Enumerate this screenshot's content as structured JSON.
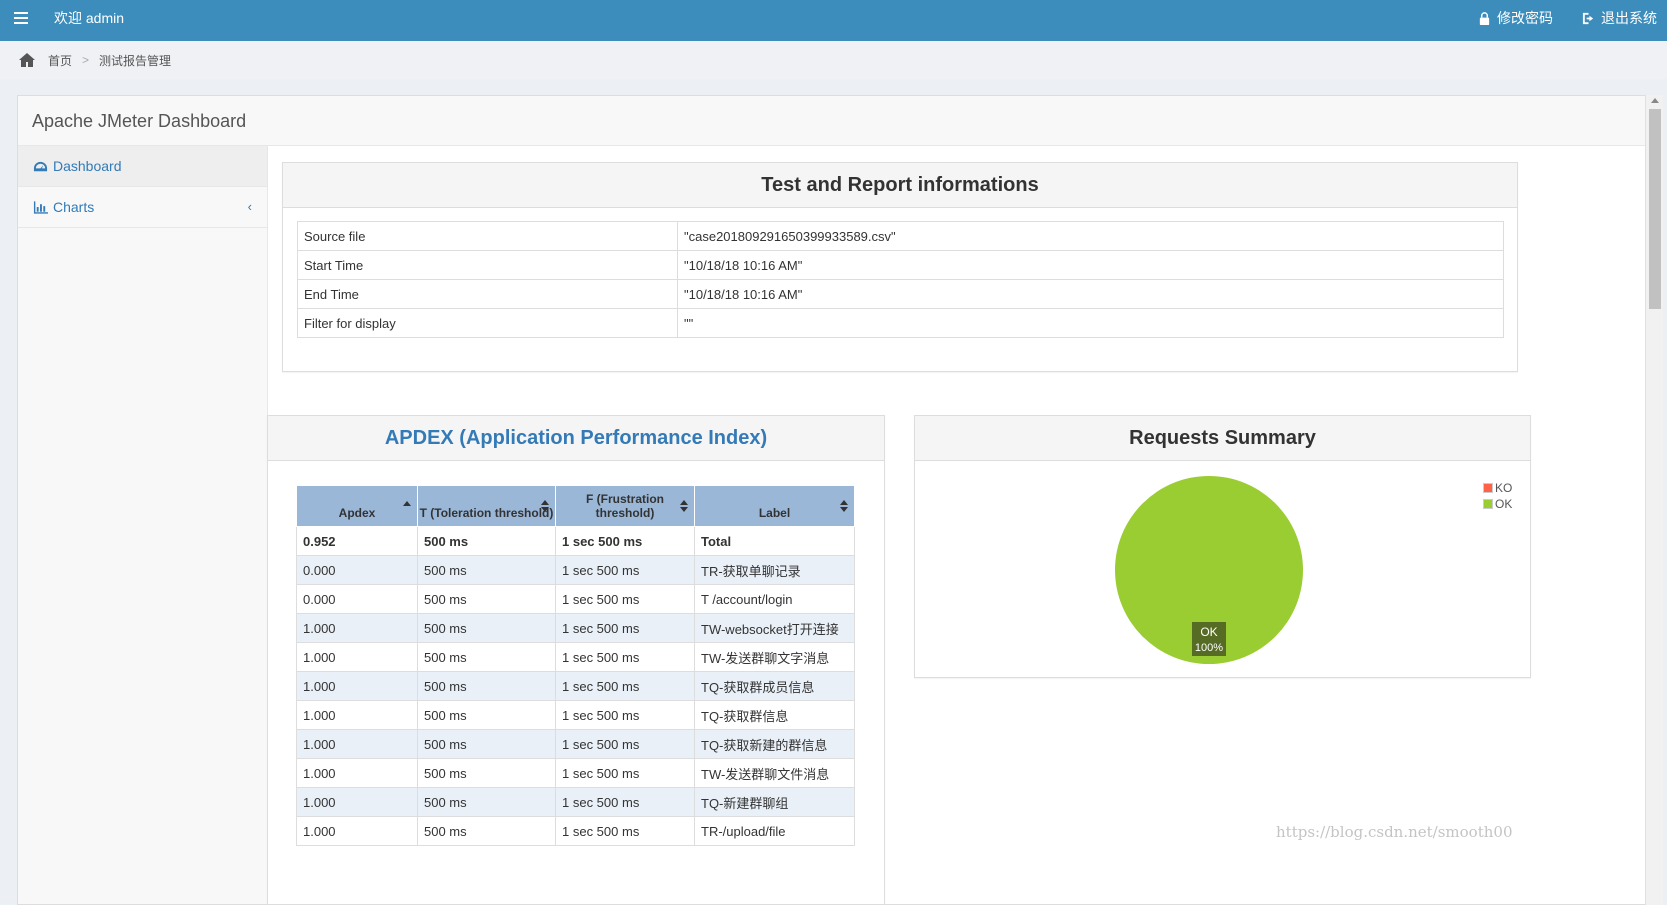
{
  "topbar": {
    "welcome": "欢迎 admin",
    "change_password": "修改密码",
    "logout": "退出系统",
    "menu_icon": "menu-icon",
    "lock_icon": "lock-icon",
    "logout_icon": "sign-out-icon"
  },
  "breadcrumb": {
    "home": "首页",
    "separator": ">",
    "current": "测试报告管理"
  },
  "dashboard": {
    "brand": "Apache JMeter Dashboard",
    "nav": [
      {
        "label": "Dashboard",
        "icon": "tachometer-icon"
      },
      {
        "label": "Charts",
        "icon": "bar-chart-icon"
      }
    ],
    "nav_arrow": "‹"
  },
  "info": {
    "title": "Test and Report informations",
    "rows": [
      {
        "key": "Source file",
        "value": "\"case20180929165039993358​9.csv\""
      },
      {
        "key": "Start Time",
        "value": "\"10/18/18 10:16 AM\""
      },
      {
        "key": "End Time",
        "value": "\"10/18/18 10:16 AM\""
      },
      {
        "key": "Filter for display",
        "value": "\"\""
      }
    ]
  },
  "apdex": {
    "title": "APDEX (Application Performance Index)",
    "headers": [
      "Apdex",
      "T (Toleration threshold)",
      "F (Frustration threshold)",
      "Label"
    ],
    "rows": [
      [
        "0.952",
        "500 ms",
        "1 sec 500 ms",
        "Total"
      ],
      [
        "0.000",
        "500 ms",
        "1 sec 500 ms",
        "TR-获取单聊记录"
      ],
      [
        "0.000",
        "500 ms",
        "1 sec 500 ms",
        "T /account/login"
      ],
      [
        "1.000",
        "500 ms",
        "1 sec 500 ms",
        "TW-websocket打开连接"
      ],
      [
        "1.000",
        "500 ms",
        "1 sec 500 ms",
        "TW-发送群聊文字消息"
      ],
      [
        "1.000",
        "500 ms",
        "1 sec 500 ms",
        "TQ-获取群成员信息"
      ],
      [
        "1.000",
        "500 ms",
        "1 sec 500 ms",
        "TQ-获取群信息"
      ],
      [
        "1.000",
        "500 ms",
        "1 sec 500 ms",
        "TQ-获取新建的群信息"
      ],
      [
        "1.000",
        "500 ms",
        "1 sec 500 ms",
        "TW-发送群聊文件消息"
      ],
      [
        "1.000",
        "500 ms",
        "1 sec 500 ms",
        "TQ-新建群聊组"
      ],
      [
        "1.000",
        "500 ms",
        "1 sec 500 ms",
        "TR-/upload/file"
      ]
    ]
  },
  "summary": {
    "title": "Requests Summary",
    "colors": {
      "KO": "#ff6347",
      "OK": "#9acd32"
    }
  },
  "chart_data": {
    "type": "pie",
    "title": "Requests Summary",
    "categories": [
      "KO",
      "OK"
    ],
    "values": [
      0,
      100
    ],
    "slice_labels": [
      {
        "name": "OK",
        "percent": "100%"
      }
    ],
    "legend": [
      "KO",
      "OK"
    ],
    "legend_position": "top-right"
  },
  "watermark": "https://blog.csdn.net/smooth00"
}
